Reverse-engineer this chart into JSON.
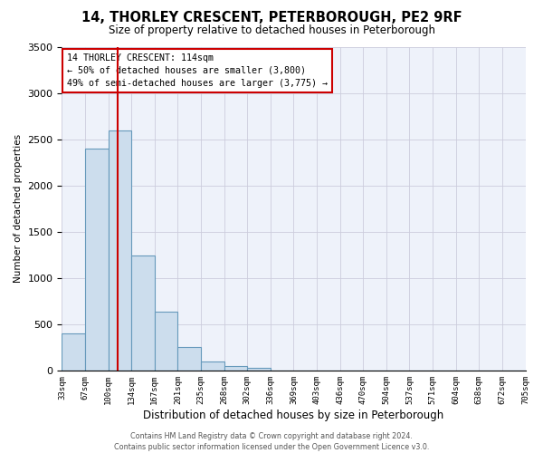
{
  "title": "14, THORLEY CRESCENT, PETERBOROUGH, PE2 9RF",
  "subtitle": "Size of property relative to detached houses in Peterborough",
  "xlabel": "Distribution of detached houses by size in Peterborough",
  "ylabel": "Number of detached properties",
  "bar_values": [
    400,
    2400,
    2600,
    1250,
    640,
    260,
    100,
    50,
    30,
    0,
    0,
    0,
    0,
    0,
    0,
    0,
    0,
    0,
    0,
    0
  ],
  "bin_labels": [
    "33sqm",
    "67sqm",
    "100sqm",
    "134sqm",
    "167sqm",
    "201sqm",
    "235sqm",
    "268sqm",
    "302sqm",
    "336sqm",
    "369sqm",
    "403sqm",
    "436sqm",
    "470sqm",
    "504sqm",
    "537sqm",
    "571sqm",
    "604sqm",
    "638sqm",
    "672sqm",
    "705sqm"
  ],
  "bar_color": "#ccdded",
  "bar_edge_color": "#6699bb",
  "vline_x": 114,
  "vline_color": "#cc0000",
  "ylim": [
    0,
    3500
  ],
  "yticks": [
    0,
    500,
    1000,
    1500,
    2000,
    2500,
    3000,
    3500
  ],
  "annotation_lines": [
    "14 THORLEY CRESCENT: 114sqm",
    "← 50% of detached houses are smaller (3,800)",
    "49% of semi-detached houses are larger (3,775) →"
  ],
  "annotation_box_facecolor": "#ffffff",
  "annotation_box_edgecolor": "#cc0000",
  "footer_line1": "Contains HM Land Registry data © Crown copyright and database right 2024.",
  "footer_line2": "Contains public sector information licensed under the Open Government Licence v3.0.",
  "plot_bg_color": "#eef2fa",
  "grid_color": "#ccccdd",
  "title_fontsize": 10.5,
  "subtitle_fontsize": 8.5,
  "n_bins": 20
}
